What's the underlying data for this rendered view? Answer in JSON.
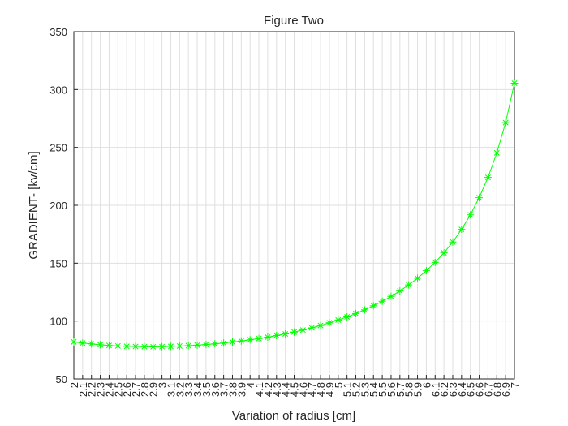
{
  "chart_data": {
    "type": "line",
    "title": "Figure Two",
    "x_label": "Variation of radius [cm]",
    "y_label": "GRADIENT- [kv/cm]",
    "x": [
      2,
      2.1,
      2.2,
      2.3,
      2.4,
      2.5,
      2.6,
      2.7,
      2.8,
      2.9,
      3,
      3.1,
      3.2,
      3.3,
      3.4,
      3.5,
      3.6,
      3.7,
      3.8,
      3.9,
      4,
      4.1,
      4.2,
      4.3,
      4.4,
      4.5,
      4.6,
      4.7,
      4.8,
      4.9,
      5,
      5.1,
      5.2,
      5.3,
      5.4,
      5.5,
      5.6,
      5.7,
      5.8,
      5.9,
      6,
      6.1,
      6.2,
      6.3,
      6.4,
      6.5,
      6.6,
      6.7,
      6.8,
      6.9,
      7
    ],
    "series": [
      {
        "color": "#00ff00",
        "marker": "asterisk",
        "values": [
          82.0,
          81.0,
          80.2,
          79.5,
          78.9,
          78.5,
          78.2,
          78.0,
          77.9,
          77.8,
          77.9,
          78.1,
          78.4,
          78.7,
          79.2,
          79.7,
          80.3,
          81.0,
          81.9,
          82.8,
          83.8,
          84.9,
          86.1,
          87.5,
          88.9,
          90.5,
          92.3,
          94.2,
          96.2,
          98.5,
          100.9,
          103.6,
          106.5,
          109.7,
          113.2,
          117.1,
          121.3,
          126.0,
          131.2,
          137.0,
          143.5,
          150.7,
          158.9,
          168.3,
          179.2,
          191.8,
          206.6,
          224.1,
          245.3,
          271.4,
          305.5
        ]
      }
    ],
    "xlim": [
      2,
      7
    ],
    "ylim": [
      50,
      350
    ],
    "xticks": [
      2,
      2.1,
      2.2,
      2.3,
      2.4,
      2.5,
      2.6,
      2.7,
      2.8,
      2.9,
      3,
      3.1,
      3.2,
      3.3,
      3.4,
      3.5,
      3.6,
      3.7,
      3.8,
      3.9,
      4,
      4.1,
      4.2,
      4.3,
      4.4,
      4.5,
      4.6,
      4.7,
      4.8,
      4.9,
      5,
      5.1,
      5.2,
      5.3,
      5.4,
      5.5,
      5.6,
      5.7,
      5.8,
      5.9,
      6,
      6.1,
      6.2,
      6.3,
      6.4,
      6.5,
      6.6,
      6.7,
      6.8,
      6.9,
      7
    ],
    "yticks": [
      50,
      100,
      150,
      200,
      250,
      300,
      350
    ],
    "grid": true
  }
}
